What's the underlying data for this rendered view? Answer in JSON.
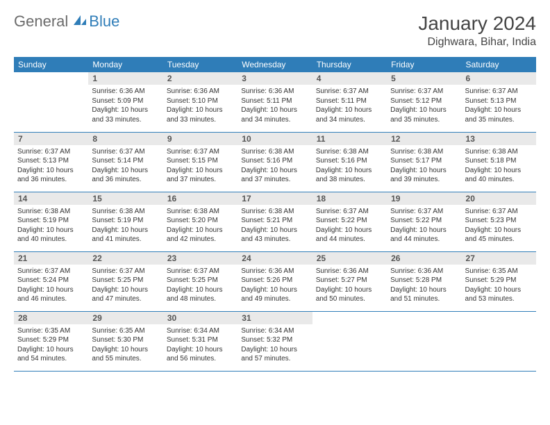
{
  "brand": {
    "part1": "General",
    "part2": "Blue"
  },
  "title": "January 2024",
  "location": "Dighwara, Bihar, India",
  "colors": {
    "header_bg": "#2f7db8",
    "header_text": "#ffffff",
    "daynum_bg": "#e9e9e9",
    "body_bg": "#ffffff",
    "line": "#2f7db8",
    "text": "#333333",
    "logo_gray": "#6b6b6b",
    "logo_blue": "#2f7db8"
  },
  "typography": {
    "title_size": 28,
    "location_size": 16,
    "header_size": 12,
    "cell_size": 10
  },
  "weekdays": [
    "Sunday",
    "Monday",
    "Tuesday",
    "Wednesday",
    "Thursday",
    "Friday",
    "Saturday"
  ],
  "weeks": [
    [
      null,
      {
        "n": "1",
        "sr": "Sunrise: 6:36 AM",
        "ss": "Sunset: 5:09 PM",
        "dl": "Daylight: 10 hours and 33 minutes."
      },
      {
        "n": "2",
        "sr": "Sunrise: 6:36 AM",
        "ss": "Sunset: 5:10 PM",
        "dl": "Daylight: 10 hours and 33 minutes."
      },
      {
        "n": "3",
        "sr": "Sunrise: 6:36 AM",
        "ss": "Sunset: 5:11 PM",
        "dl": "Daylight: 10 hours and 34 minutes."
      },
      {
        "n": "4",
        "sr": "Sunrise: 6:37 AM",
        "ss": "Sunset: 5:11 PM",
        "dl": "Daylight: 10 hours and 34 minutes."
      },
      {
        "n": "5",
        "sr": "Sunrise: 6:37 AM",
        "ss": "Sunset: 5:12 PM",
        "dl": "Daylight: 10 hours and 35 minutes."
      },
      {
        "n": "6",
        "sr": "Sunrise: 6:37 AM",
        "ss": "Sunset: 5:13 PM",
        "dl": "Daylight: 10 hours and 35 minutes."
      }
    ],
    [
      {
        "n": "7",
        "sr": "Sunrise: 6:37 AM",
        "ss": "Sunset: 5:13 PM",
        "dl": "Daylight: 10 hours and 36 minutes."
      },
      {
        "n": "8",
        "sr": "Sunrise: 6:37 AM",
        "ss": "Sunset: 5:14 PM",
        "dl": "Daylight: 10 hours and 36 minutes."
      },
      {
        "n": "9",
        "sr": "Sunrise: 6:37 AM",
        "ss": "Sunset: 5:15 PM",
        "dl": "Daylight: 10 hours and 37 minutes."
      },
      {
        "n": "10",
        "sr": "Sunrise: 6:38 AM",
        "ss": "Sunset: 5:16 PM",
        "dl": "Daylight: 10 hours and 37 minutes."
      },
      {
        "n": "11",
        "sr": "Sunrise: 6:38 AM",
        "ss": "Sunset: 5:16 PM",
        "dl": "Daylight: 10 hours and 38 minutes."
      },
      {
        "n": "12",
        "sr": "Sunrise: 6:38 AM",
        "ss": "Sunset: 5:17 PM",
        "dl": "Daylight: 10 hours and 39 minutes."
      },
      {
        "n": "13",
        "sr": "Sunrise: 6:38 AM",
        "ss": "Sunset: 5:18 PM",
        "dl": "Daylight: 10 hours and 40 minutes."
      }
    ],
    [
      {
        "n": "14",
        "sr": "Sunrise: 6:38 AM",
        "ss": "Sunset: 5:19 PM",
        "dl": "Daylight: 10 hours and 40 minutes."
      },
      {
        "n": "15",
        "sr": "Sunrise: 6:38 AM",
        "ss": "Sunset: 5:19 PM",
        "dl": "Daylight: 10 hours and 41 minutes."
      },
      {
        "n": "16",
        "sr": "Sunrise: 6:38 AM",
        "ss": "Sunset: 5:20 PM",
        "dl": "Daylight: 10 hours and 42 minutes."
      },
      {
        "n": "17",
        "sr": "Sunrise: 6:38 AM",
        "ss": "Sunset: 5:21 PM",
        "dl": "Daylight: 10 hours and 43 minutes."
      },
      {
        "n": "18",
        "sr": "Sunrise: 6:37 AM",
        "ss": "Sunset: 5:22 PM",
        "dl": "Daylight: 10 hours and 44 minutes."
      },
      {
        "n": "19",
        "sr": "Sunrise: 6:37 AM",
        "ss": "Sunset: 5:22 PM",
        "dl": "Daylight: 10 hours and 44 minutes."
      },
      {
        "n": "20",
        "sr": "Sunrise: 6:37 AM",
        "ss": "Sunset: 5:23 PM",
        "dl": "Daylight: 10 hours and 45 minutes."
      }
    ],
    [
      {
        "n": "21",
        "sr": "Sunrise: 6:37 AM",
        "ss": "Sunset: 5:24 PM",
        "dl": "Daylight: 10 hours and 46 minutes."
      },
      {
        "n": "22",
        "sr": "Sunrise: 6:37 AM",
        "ss": "Sunset: 5:25 PM",
        "dl": "Daylight: 10 hours and 47 minutes."
      },
      {
        "n": "23",
        "sr": "Sunrise: 6:37 AM",
        "ss": "Sunset: 5:25 PM",
        "dl": "Daylight: 10 hours and 48 minutes."
      },
      {
        "n": "24",
        "sr": "Sunrise: 6:36 AM",
        "ss": "Sunset: 5:26 PM",
        "dl": "Daylight: 10 hours and 49 minutes."
      },
      {
        "n": "25",
        "sr": "Sunrise: 6:36 AM",
        "ss": "Sunset: 5:27 PM",
        "dl": "Daylight: 10 hours and 50 minutes."
      },
      {
        "n": "26",
        "sr": "Sunrise: 6:36 AM",
        "ss": "Sunset: 5:28 PM",
        "dl": "Daylight: 10 hours and 51 minutes."
      },
      {
        "n": "27",
        "sr": "Sunrise: 6:35 AM",
        "ss": "Sunset: 5:29 PM",
        "dl": "Daylight: 10 hours and 53 minutes."
      }
    ],
    [
      {
        "n": "28",
        "sr": "Sunrise: 6:35 AM",
        "ss": "Sunset: 5:29 PM",
        "dl": "Daylight: 10 hours and 54 minutes."
      },
      {
        "n": "29",
        "sr": "Sunrise: 6:35 AM",
        "ss": "Sunset: 5:30 PM",
        "dl": "Daylight: 10 hours and 55 minutes."
      },
      {
        "n": "30",
        "sr": "Sunrise: 6:34 AM",
        "ss": "Sunset: 5:31 PM",
        "dl": "Daylight: 10 hours and 56 minutes."
      },
      {
        "n": "31",
        "sr": "Sunrise: 6:34 AM",
        "ss": "Sunset: 5:32 PM",
        "dl": "Daylight: 10 hours and 57 minutes."
      },
      null,
      null,
      null
    ]
  ]
}
